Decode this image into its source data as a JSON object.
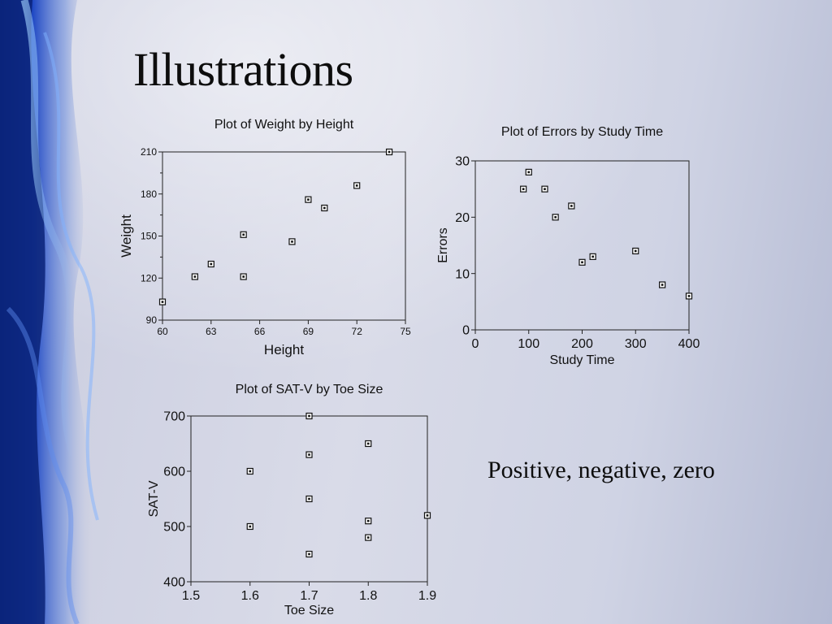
{
  "slide": {
    "title": "Illustrations",
    "caption": "Positive, negative, zero"
  },
  "chart_data": [
    {
      "type": "scatter",
      "title": "Plot of Weight by Height",
      "xlabel": "Height",
      "ylabel": "Weight",
      "xlim": [
        60,
        75
      ],
      "ylim": [
        90,
        210
      ],
      "xticks": [
        60,
        63,
        66,
        69,
        72,
        75
      ],
      "yticks": [
        90,
        120,
        150,
        180,
        210
      ],
      "grid": false,
      "points": [
        {
          "x": 60,
          "y": 103
        },
        {
          "x": 62,
          "y": 121
        },
        {
          "x": 63,
          "y": 130
        },
        {
          "x": 65,
          "y": 121
        },
        {
          "x": 65,
          "y": 151
        },
        {
          "x": 68,
          "y": 146
        },
        {
          "x": 69,
          "y": 176
        },
        {
          "x": 70,
          "y": 170
        },
        {
          "x": 72,
          "y": 186
        },
        {
          "x": 74,
          "y": 210
        }
      ]
    },
    {
      "type": "scatter",
      "title": "Plot of Errors by Study Time",
      "xlabel": "Study Time",
      "ylabel": "Errors",
      "xlim": [
        0,
        400
      ],
      "ylim": [
        0,
        30
      ],
      "xticks": [
        0,
        100,
        200,
        300,
        400
      ],
      "yticks": [
        0,
        10,
        20,
        30
      ],
      "grid": false,
      "points": [
        {
          "x": 90,
          "y": 25
        },
        {
          "x": 100,
          "y": 28
        },
        {
          "x": 130,
          "y": 25
        },
        {
          "x": 150,
          "y": 20
        },
        {
          "x": 180,
          "y": 22
        },
        {
          "x": 200,
          "y": 12
        },
        {
          "x": 220,
          "y": 13
        },
        {
          "x": 300,
          "y": 14
        },
        {
          "x": 350,
          "y": 8
        },
        {
          "x": 400,
          "y": 6
        }
      ]
    },
    {
      "type": "scatter",
      "title": "Plot of SAT-V by Toe Size",
      "xlabel": "Toe Size",
      "ylabel": "SAT-V",
      "xlim": [
        1.5,
        1.9
      ],
      "ylim": [
        400,
        700
      ],
      "xticks": [
        1.5,
        1.6,
        1.7,
        1.8,
        1.9
      ],
      "yticks": [
        400,
        500,
        600,
        700
      ],
      "grid": false,
      "points": [
        {
          "x": 1.6,
          "y": 600
        },
        {
          "x": 1.6,
          "y": 500
        },
        {
          "x": 1.7,
          "y": 700
        },
        {
          "x": 1.7,
          "y": 630
        },
        {
          "x": 1.7,
          "y": 550
        },
        {
          "x": 1.7,
          "y": 450
        },
        {
          "x": 1.8,
          "y": 650
        },
        {
          "x": 1.8,
          "y": 510
        },
        {
          "x": 1.8,
          "y": 480
        },
        {
          "x": 1.9,
          "y": 520
        }
      ]
    }
  ]
}
